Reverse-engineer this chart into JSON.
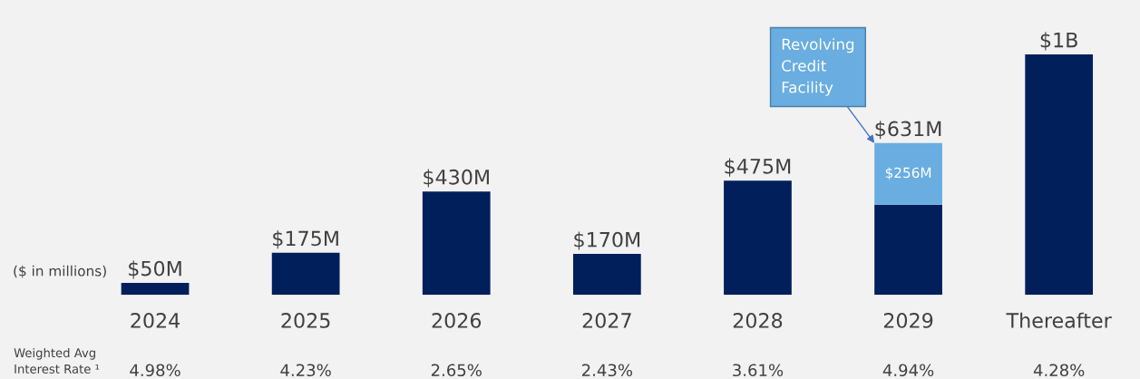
{
  "chart_data": {
    "type": "bar",
    "stacked": true,
    "categories": [
      "2024",
      "2025",
      "2026",
      "2027",
      "2028",
      "2029",
      "Thereafter"
    ],
    "series": [
      {
        "color": "#001f5b",
        "values": [
          50,
          175,
          430,
          170,
          475,
          375,
          1000
        ]
      },
      {
        "color": "#6aade0",
        "values": [
          null,
          null,
          null,
          null,
          null,
          256,
          null
        ],
        "value_labels": [
          null,
          null,
          null,
          null,
          null,
          "$256M",
          null
        ]
      }
    ],
    "totals": [
      "$50M",
      "$175M",
      "$430M",
      "$170M",
      "$475M",
      "$631M",
      "$1B"
    ],
    "ylim": [
      0,
      1100
    ],
    "tick_labels": "x",
    "grid": false,
    "legend": false,
    "annotations": [
      "($ in millions)",
      "Weighted Avg\nInterest Rate ¹",
      "4.98%",
      "4.23%",
      "2.65%",
      "2.43%",
      "3.61%",
      "4.94%",
      "4.28%",
      "Revolving\nCredit\nFacility"
    ]
  }
}
